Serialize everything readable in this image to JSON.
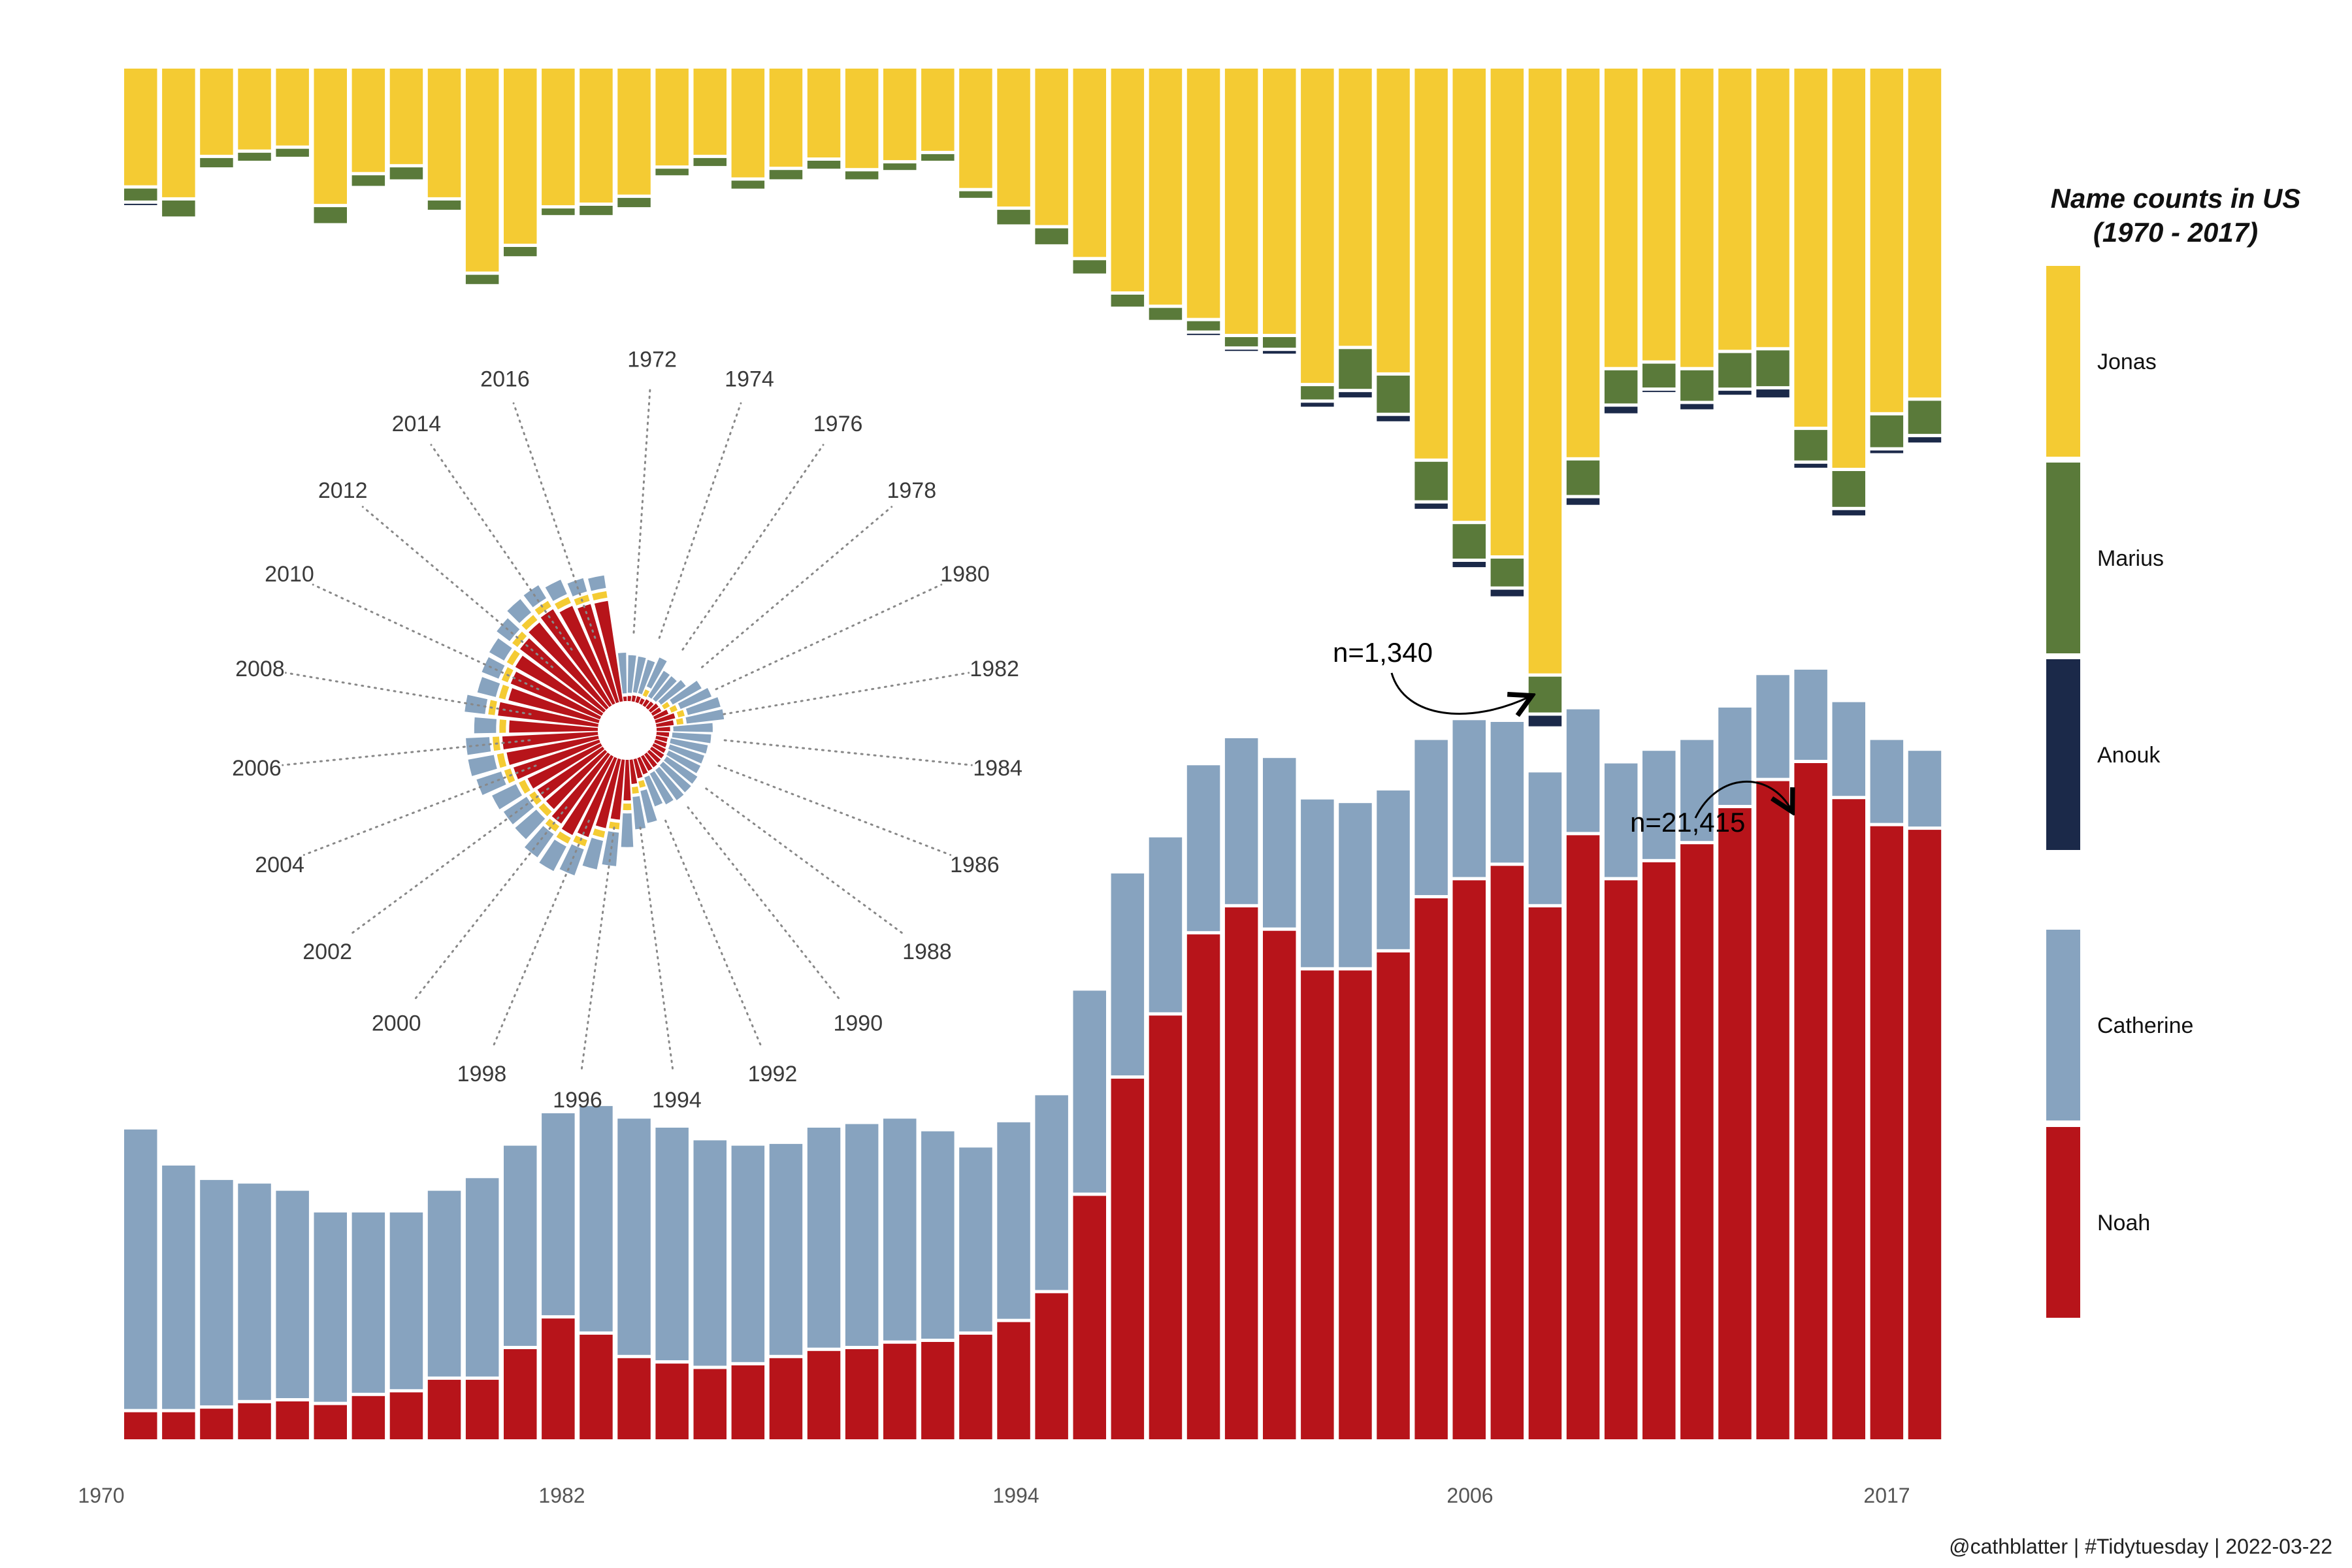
{
  "chart_data": {
    "type": "bar",
    "x_ticks": [
      "1970",
      "1982",
      "1994",
      "2006",
      "2017"
    ],
    "years": [
      1970,
      1971,
      1972,
      1973,
      1974,
      1975,
      1976,
      1977,
      1978,
      1979,
      1980,
      1981,
      1982,
      1983,
      1984,
      1985,
      1986,
      1987,
      1988,
      1989,
      1990,
      1991,
      1992,
      1993,
      1994,
      1995,
      1996,
      1997,
      1998,
      1999,
      2000,
      2001,
      2002,
      2003,
      2004,
      2005,
      2006,
      2007,
      2008,
      2009,
      2010,
      2011,
      2012,
      2013,
      2014,
      2015,
      2016,
      2017
    ],
    "top_series": [
      {
        "name": "Jonas",
        "color": "#F4CB33",
        "values": [
          88,
          97,
          65,
          61,
          58,
          102,
          78,
          72,
          97,
          153,
          132,
          103,
          101,
          95,
          73,
          65,
          82,
          74,
          67,
          75,
          69,
          62,
          90,
          104,
          118,
          142,
          168,
          178,
          188,
          200,
          200,
          237,
          209,
          229,
          294,
          341,
          367,
          456,
          293,
          225,
          220,
          225,
          212,
          210,
          270,
          301,
          259,
          248
        ]
      },
      {
        "name": "Marius",
        "color": "#5A7A3A",
        "values": [
          9,
          12,
          7,
          6,
          6,
          12,
          8,
          9,
          7,
          7,
          7,
          5,
          7,
          7,
          5,
          6,
          6,
          7,
          6,
          6,
          5,
          5,
          5,
          11,
          12,
          10,
          9,
          9,
          7,
          7,
          8,
          10,
          30,
          28,
          29,
          26,
          21,
          27,
          26,
          25,
          18,
          23,
          26,
          27,
          23,
          27,
          24,
          25
        ]
      },
      {
        "name": "Anouk",
        "color": "#1B2949",
        "values": [
          1,
          0,
          0,
          0,
          0,
          0,
          0,
          0,
          0,
          0,
          0,
          0,
          0,
          0,
          0,
          0,
          0,
          0,
          0,
          0,
          0,
          0,
          0,
          0,
          0,
          0,
          0,
          0,
          1,
          1,
          2,
          3,
          4,
          4,
          4,
          4,
          5,
          8,
          5,
          5,
          1,
          4,
          3,
          6,
          3,
          4,
          2,
          4
        ]
      }
    ],
    "bottom_series": [
      {
        "name": "Noah",
        "color": "#B7141A",
        "values": [
          1500,
          1500,
          1700,
          2000,
          2100,
          1900,
          2400,
          2600,
          3300,
          3300,
          5000,
          6700,
          5800,
          4500,
          4200,
          3900,
          4100,
          4500,
          4900,
          5000,
          5300,
          5400,
          5800,
          6500,
          8100,
          13500,
          20000,
          23500,
          28000,
          29500,
          28200,
          26000,
          26000,
          27000,
          30000,
          31000,
          31800,
          29500,
          33500,
          31000,
          32000,
          33000,
          35000,
          36500,
          37500,
          35500,
          34000,
          33800
        ]
      },
      {
        "name": "Catherine",
        "color": "#87A3BF",
        "values": [
          15500,
          13500,
          12500,
          12000,
          11500,
          10500,
          10000,
          9800,
          10300,
          11000,
          11100,
          11200,
          12500,
          13100,
          12900,
          12500,
          12000,
          11700,
          12200,
          12300,
          12300,
          11500,
          10200,
          10900,
          10800,
          11200,
          11200,
          9700,
          9200,
          9200,
          9400,
          9300,
          9100,
          8800,
          8600,
          8700,
          7800,
          7300,
          6800,
          6300,
          6000,
          5600,
          5400,
          5700,
          5000,
          5200,
          4600,
          4200
        ]
      }
    ],
    "top_ylim": [
      0,
      500
    ],
    "bottom_ylim": [
      0,
      51500
    ],
    "radial_labels": [
      "1972",
      "1974",
      "1976",
      "1978",
      "1980",
      "1982",
      "1984",
      "1986",
      "1988",
      "1990",
      "1992",
      "1994",
      "1996",
      "1998",
      "2000",
      "2002",
      "2004",
      "2006",
      "2008",
      "2010",
      "2012",
      "2014",
      "2016"
    ],
    "annotations": [
      {
        "text": "n=1,340"
      },
      {
        "text": "n=21,415"
      }
    ],
    "legend": {
      "title_line1": "Name counts in US",
      "title_line2": "(1970 - 2017)",
      "entries": [
        {
          "label": "Jonas",
          "color": "#F4CB33"
        },
        {
          "label": "Marius",
          "color": "#5A7A3A"
        },
        {
          "label": "Anouk",
          "color": "#1B2949"
        },
        {
          "label": "Catherine",
          "color": "#87A3BF"
        },
        {
          "label": "Noah",
          "color": "#B7141A"
        }
      ]
    },
    "caption": "@cathblatter | #Tidytuesday | 2022-03-22"
  }
}
